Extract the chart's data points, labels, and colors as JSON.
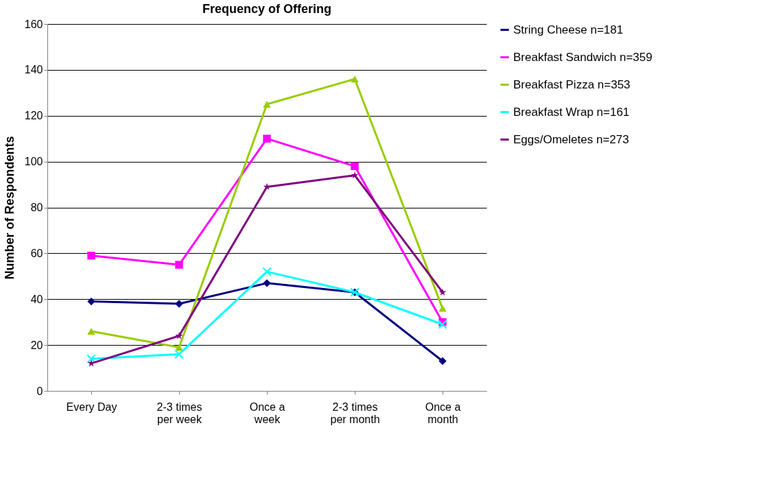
{
  "chart_data": {
    "type": "line",
    "title": "Frequency of Offering",
    "ylabel": "Number of Respondents",
    "categories": [
      "Every Day",
      "2-3 times per week",
      "Once a week",
      "2-3 times per month",
      "Once a month"
    ],
    "series": [
      {
        "name": "String Cheese n=181",
        "color": "#000080",
        "marker": "diamond",
        "values": [
          39,
          38,
          47,
          43,
          13
        ]
      },
      {
        "name": "Breakfast Sandwich n=359",
        "color": "#ff00ff",
        "marker": "square",
        "values": [
          59,
          55,
          110,
          98,
          30
        ]
      },
      {
        "name": "Breakfast Pizza n=353",
        "color": "#99cc00",
        "marker": "triangle",
        "values": [
          26,
          19,
          125,
          136,
          36
        ]
      },
      {
        "name": "Breakfast Wrap n=161",
        "color": "#00ffff",
        "marker": "cross",
        "values": [
          14,
          16,
          52,
          43,
          29
        ]
      },
      {
        "name": "Eggs/Omeletes n=273",
        "color": "#800080",
        "marker": "star",
        "values": [
          12,
          24,
          89,
          94,
          43
        ]
      }
    ],
    "ylim": [
      0,
      160
    ],
    "yticks": [
      0,
      20,
      40,
      60,
      80,
      100,
      120,
      140,
      160
    ],
    "grid": "y",
    "legend": "right",
    "line_style": "solid"
  }
}
